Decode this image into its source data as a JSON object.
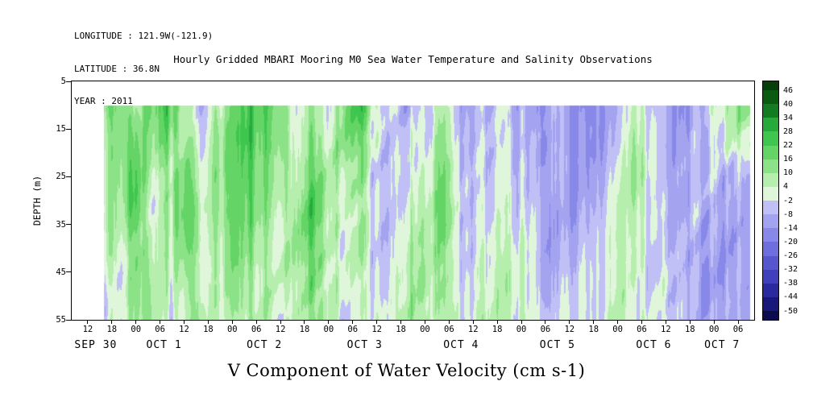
{
  "header": {
    "longitude": "LONGITUDE : 121.9W(-121.9)",
    "latitude": "LATITUDE : 36.8N",
    "year": "YEAR : 2011"
  },
  "title": "Hourly Gridded MBARI Mooring M0 Sea Water Temperature and Salinity Observations",
  "footer_label": "V Component of Water Velocity (cm s-1)",
  "chart_data": {
    "type": "heatmap",
    "title": "Hourly Gridded MBARI Mooring M0 Sea Water Temperature and Salinity Observations",
    "xlabel": "",
    "ylabel": "DEPTH (m)",
    "units": "cm s-1",
    "y_range": [
      5,
      55
    ],
    "y_ticks": [
      5,
      15,
      25,
      35,
      45,
      55
    ],
    "time_axis": {
      "range_hours": [
        -16,
        154
      ],
      "tick_step_hours": 6,
      "tick_hours": [
        -12,
        -6,
        0,
        6,
        12,
        18,
        24,
        30,
        36,
        42,
        48,
        54,
        60,
        66,
        72,
        78,
        84,
        90,
        96,
        102,
        108,
        114,
        120,
        126,
        132,
        138,
        144,
        150
      ],
      "tick_labels": [
        "12",
        "18",
        "00",
        "06",
        "12",
        "18",
        "00",
        "06",
        "12",
        "18",
        "00",
        "06",
        "12",
        "18",
        "00",
        "06",
        "12",
        "18",
        "00",
        "06",
        "12",
        "18",
        "00",
        "06",
        "12",
        "18",
        "00",
        "06"
      ],
      "date_labels": [
        {
          "text": "SEP 30",
          "hour": -10
        },
        {
          "text": "OCT 1",
          "hour": 7
        },
        {
          "text": "OCT 2",
          "hour": 32
        },
        {
          "text": "OCT 3",
          "hour": 57
        },
        {
          "text": "OCT 4",
          "hour": 81
        },
        {
          "text": "OCT 5",
          "hour": 105
        },
        {
          "text": "OCT 6",
          "hour": 129
        },
        {
          "text": "OCT 7",
          "hour": 146
        }
      ]
    },
    "data_extent": {
      "t": [
        -8,
        153
      ],
      "depth": [
        10,
        55
      ]
    },
    "grid": {
      "t_start": -8,
      "t_step": 4,
      "depths": [
        10,
        17.5,
        25,
        32.5,
        40,
        47.5,
        55
      ],
      "values": [
        [
          18,
          22,
          10,
          14,
          20,
          8,
          -4,
          6,
          14,
          24,
          26,
          18,
          6,
          10,
          4,
          18,
          22,
          2,
          -6,
          -10,
          -4,
          4,
          -8,
          -12,
          -6,
          2,
          -8,
          -14,
          -6,
          -12,
          -16,
          -10,
          -4,
          8,
          -6,
          -14,
          -18,
          -8,
          4,
          10,
          16
        ],
        [
          14,
          18,
          16,
          8,
          16,
          12,
          -2,
          10,
          18,
          28,
          24,
          14,
          8,
          14,
          8,
          14,
          16,
          -2,
          -8,
          -6,
          2,
          8,
          -6,
          -10,
          -4,
          4,
          -6,
          -12,
          -8,
          -14,
          -12,
          -8,
          -2,
          10,
          -4,
          -12,
          -14,
          -6,
          2,
          4,
          8
        ],
        [
          10,
          14,
          20,
          4,
          12,
          16,
          2,
          12,
          20,
          26,
          20,
          10,
          12,
          18,
          10,
          8,
          10,
          -6,
          -10,
          -2,
          6,
          10,
          -4,
          -8,
          -2,
          6,
          -4,
          -10,
          -10,
          -12,
          -8,
          -6,
          2,
          12,
          -2,
          -10,
          -12,
          -4,
          -2,
          -6,
          -4
        ],
        [
          8,
          10,
          22,
          2,
          8,
          18,
          6,
          14,
          22,
          22,
          16,
          6,
          16,
          20,
          12,
          4,
          6,
          -8,
          -8,
          2,
          8,
          12,
          -2,
          -6,
          2,
          8,
          -2,
          -8,
          -12,
          -10,
          -6,
          -4,
          4,
          10,
          -2,
          -8,
          -10,
          -6,
          -4,
          -8,
          -6
        ],
        [
          6,
          8,
          18,
          4,
          6,
          14,
          8,
          12,
          18,
          16,
          12,
          4,
          14,
          18,
          10,
          2,
          4,
          -6,
          -6,
          4,
          10,
          8,
          -2,
          -4,
          4,
          10,
          2,
          -6,
          -10,
          -8,
          -4,
          -2,
          6,
          8,
          -4,
          -6,
          -8,
          -8,
          -6,
          -10,
          -8
        ],
        [
          4,
          6,
          14,
          6,
          4,
          10,
          10,
          10,
          14,
          12,
          10,
          2,
          12,
          14,
          8,
          0,
          2,
          -4,
          -4,
          6,
          12,
          6,
          0,
          -2,
          6,
          12,
          4,
          -4,
          -8,
          -6,
          -2,
          0,
          8,
          6,
          -4,
          -4,
          -6,
          -8,
          -8,
          -10,
          -8
        ],
        [
          2,
          4,
          10,
          8,
          2,
          8,
          12,
          8,
          10,
          10,
          8,
          0,
          10,
          10,
          6,
          -2,
          0,
          -2,
          -2,
          8,
          10,
          4,
          2,
          0,
          8,
          10,
          6,
          -2,
          -6,
          -4,
          0,
          2,
          10,
          4,
          -2,
          -2,
          -4,
          -6,
          -8,
          -8,
          -6
        ]
      ]
    },
    "colorbar": {
      "tick_labels": [
        46,
        40,
        34,
        28,
        22,
        16,
        10,
        4,
        -2,
        -8,
        -14,
        -20,
        -26,
        -32,
        -38,
        -44,
        -50
      ],
      "boundaries": [
        -50,
        -44,
        -38,
        -32,
        -26,
        -20,
        -14,
        -8,
        -2,
        4,
        10,
        16,
        22,
        28,
        34,
        40,
        46
      ],
      "colors": [
        "#0b0b4e",
        "#18187a",
        "#2a2a9e",
        "#4040bd",
        "#5656cf",
        "#6e6edd",
        "#8888e8",
        "#a3a3f0",
        "#c0c0f6",
        "#dff6da",
        "#b6eeae",
        "#8ce287",
        "#63d465",
        "#3ec64e",
        "#27a93c",
        "#137c22",
        "#0a5a12",
        "#063f0a"
      ]
    },
    "texture_noise_amp": 7
  }
}
